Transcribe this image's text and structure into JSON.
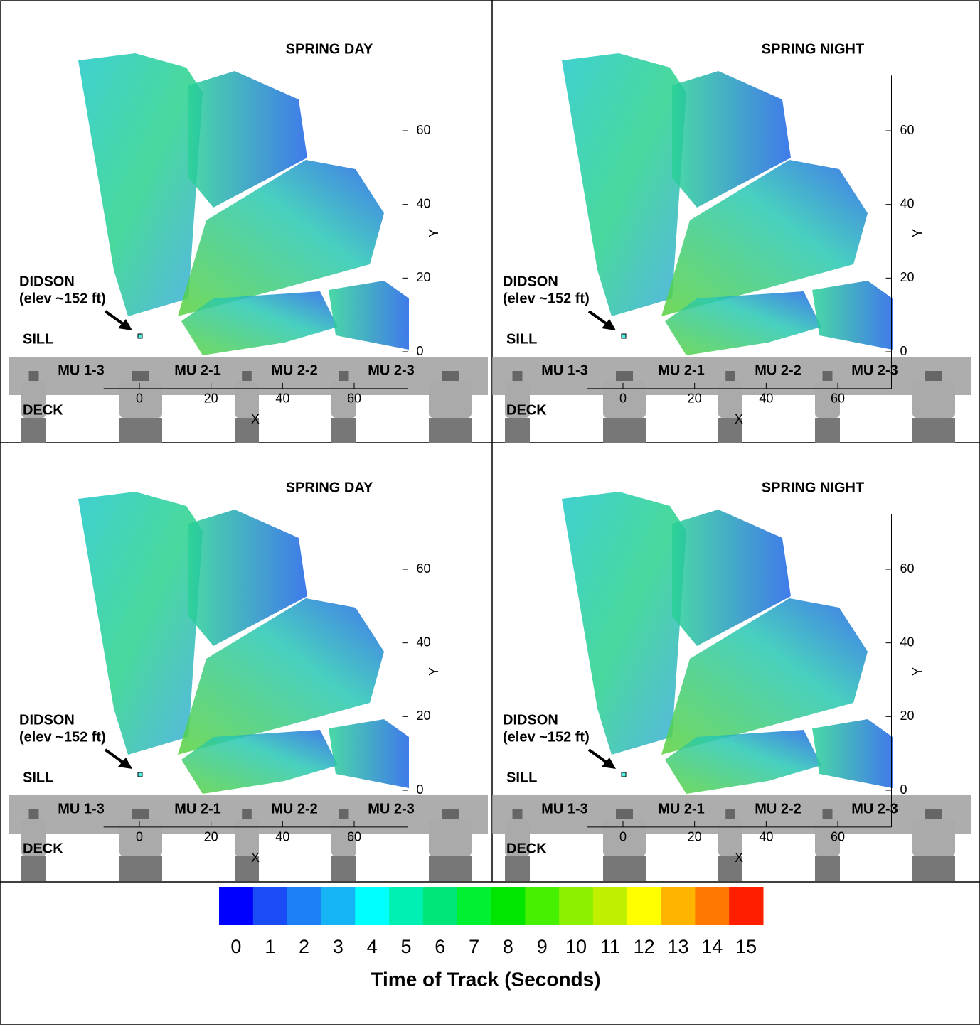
{
  "chart_data": [
    {
      "type": "track-map",
      "title": "SPRING DAY",
      "xlabel": "X",
      "ylabel": "Y",
      "xlim": [
        -10,
        75
      ],
      "ylim": [
        -10,
        75
      ],
      "xticks": [
        0,
        20,
        40,
        60
      ],
      "yticks": [
        0,
        20,
        40,
        60
      ],
      "annotations": {
        "sensor": "DIDSON",
        "elevation": "(elev ~152 ft)",
        "sill": "SILL",
        "deck": "DECK",
        "units": [
          "MU 1-3",
          "MU 2-1",
          "MU 2-2",
          "MU 2-3"
        ]
      }
    },
    {
      "type": "track-map",
      "title": "SPRING NIGHT",
      "xlabel": "X",
      "ylabel": "Y",
      "xlim": [
        -10,
        75
      ],
      "ylim": [
        -10,
        75
      ],
      "xticks": [
        0,
        20,
        40,
        60
      ],
      "yticks": [
        0,
        20,
        40,
        60
      ],
      "annotations": {
        "sensor": "DIDSON",
        "elevation": "(elev ~152 ft)",
        "sill": "SILL",
        "deck": "DECK",
        "units": [
          "MU 1-3",
          "MU 2-1",
          "MU 2-2",
          "MU 2-3"
        ]
      }
    },
    {
      "type": "track-map",
      "title": "SPRING DAY",
      "xlabel": "X",
      "ylabel": "Y",
      "xlim": [
        -10,
        75
      ],
      "ylim": [
        -10,
        75
      ],
      "xticks": [
        0,
        20,
        40,
        60
      ],
      "yticks": [
        0,
        20,
        40,
        60
      ],
      "annotations": {
        "sensor": "DIDSON",
        "elevation": "(elev ~152 ft)",
        "sill": "SILL",
        "deck": "DECK",
        "units": [
          "MU 1-3",
          "MU 2-1",
          "MU 2-2",
          "MU 2-3"
        ]
      }
    },
    {
      "type": "track-map",
      "title": "SPRING NIGHT",
      "xlabel": "X",
      "ylabel": "Y",
      "xlim": [
        -10,
        75
      ],
      "ylim": [
        -10,
        75
      ],
      "xticks": [
        0,
        20,
        40,
        60
      ],
      "yticks": [
        0,
        20,
        40,
        60
      ],
      "annotations": {
        "sensor": "DIDSON",
        "elevation": "(elev ~152 ft)",
        "sill": "SILL",
        "deck": "DECK",
        "units": [
          "MU 1-3",
          "MU 2-1",
          "MU 2-2",
          "MU 2-3"
        ]
      }
    }
  ],
  "colorbar": {
    "title": "Time of Track (Seconds)",
    "ticks": [
      0,
      1,
      2,
      3,
      4,
      5,
      6,
      7,
      8,
      9,
      10,
      11,
      12,
      13,
      14,
      15
    ],
    "colors": [
      "#0000ff",
      "#1a4cf5",
      "#1e80f5",
      "#14b4f5",
      "#00ffff",
      "#00f0b4",
      "#00e678",
      "#00f032",
      "#00e600",
      "#46f000",
      "#8cf000",
      "#c0f000",
      "#ffff00",
      "#ffb400",
      "#ff7800",
      "#ff1e00"
    ]
  }
}
